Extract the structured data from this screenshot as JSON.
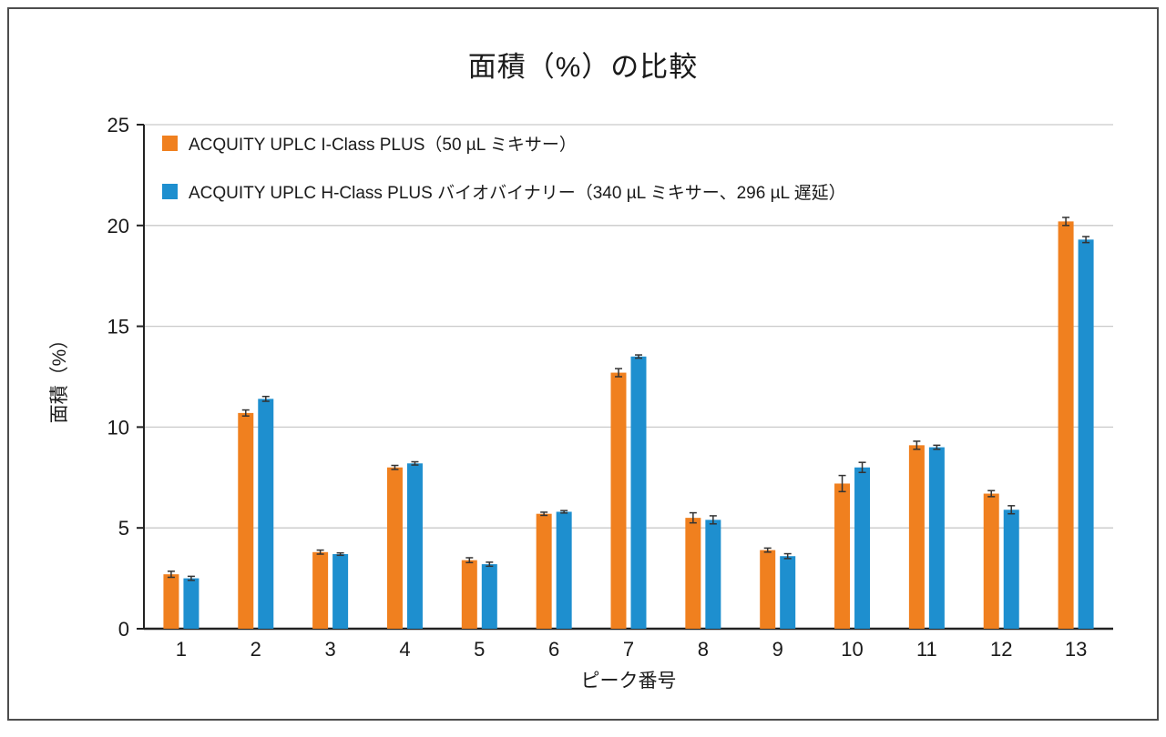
{
  "title": "面積（%）の比較",
  "chart_data": {
    "type": "bar",
    "title": "面積（%）の比較",
    "xlabel": "ピーク番号",
    "ylabel": "面積（%）",
    "ylim": [
      0,
      25
    ],
    "yticks": [
      0,
      5,
      10,
      15,
      20,
      25
    ],
    "grid": true,
    "legend_position": "top-left-inside",
    "categories": [
      "1",
      "2",
      "3",
      "4",
      "5",
      "6",
      "7",
      "8",
      "9",
      "10",
      "11",
      "12",
      "13"
    ],
    "series": [
      {
        "name": "ACQUITY UPLC I-Class PLUS（50 µL ミキサー）",
        "color": "#F0801F",
        "values": [
          2.7,
          10.7,
          3.8,
          8.0,
          3.4,
          5.7,
          12.7,
          5.5,
          3.9,
          7.2,
          9.1,
          6.7,
          20.2
        ],
        "errors": [
          0.15,
          0.15,
          0.1,
          0.1,
          0.12,
          0.08,
          0.2,
          0.25,
          0.1,
          0.4,
          0.2,
          0.15,
          0.2
        ]
      },
      {
        "name": "ACQUITY UPLC H-Class PLUS バイオバイナリー（340 µL ミキサー、296 µL 遅延）",
        "color": "#1E8FCF",
        "values": [
          2.5,
          11.4,
          3.7,
          8.2,
          3.2,
          5.8,
          13.5,
          5.4,
          3.6,
          8.0,
          9.0,
          5.9,
          19.3
        ],
        "errors": [
          0.1,
          0.12,
          0.06,
          0.08,
          0.1,
          0.06,
          0.08,
          0.2,
          0.12,
          0.25,
          0.1,
          0.2,
          0.15
        ]
      }
    ],
    "colors": {
      "axis": "#222222",
      "grid": "#c9c9c9",
      "error_bar": "#333333",
      "text": "#1a1a1a"
    }
  }
}
